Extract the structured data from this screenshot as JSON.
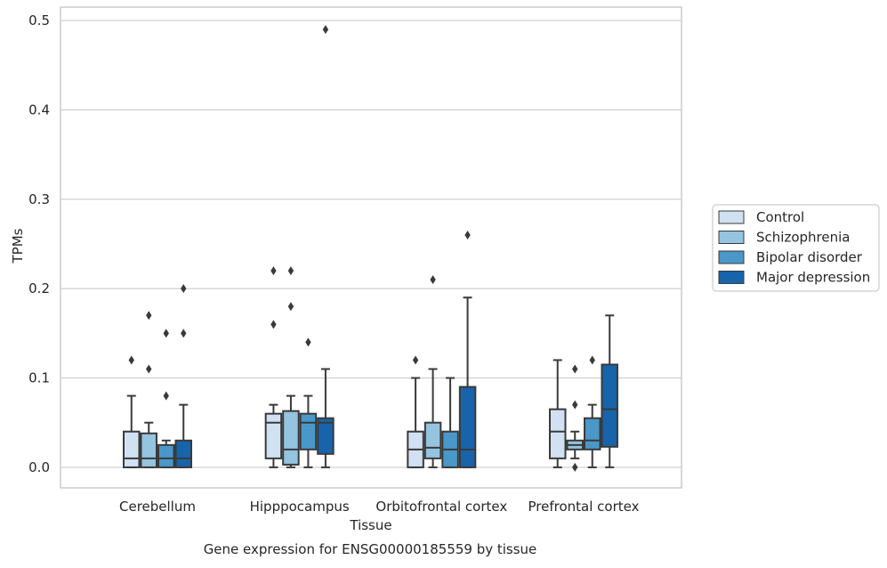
{
  "chart_data": {
    "type": "boxplot",
    "xlabel": "Tissue",
    "ylabel": "TPMs",
    "caption": "Gene expression for ENSG00000185559 by tissue",
    "ylim": [
      -0.023,
      0.515
    ],
    "yticks": [
      0.0,
      0.1,
      0.2,
      0.3,
      0.4,
      0.5
    ],
    "ytick_labels": [
      "0.0",
      "0.1",
      "0.2",
      "0.3",
      "0.4",
      "0.5"
    ],
    "grid": "horizontal",
    "legend_position": "right",
    "categories": [
      "Cerebellum",
      "Hipppocampus",
      "Orbitofrontal cortex",
      "Prefrontal cortex"
    ],
    "series": [
      {
        "name": "Control",
        "color": "#d0e1f2",
        "boxes": [
          {
            "whisker_low": 0.0,
            "q1": 0.0,
            "median": 0.01,
            "q3": 0.04,
            "whisker_high": 0.08,
            "outliers": [
              0.12
            ]
          },
          {
            "whisker_low": 0.0,
            "q1": 0.01,
            "median": 0.05,
            "q3": 0.06,
            "whisker_high": 0.07,
            "outliers": [
              0.16,
              0.22
            ]
          },
          {
            "whisker_low": 0.0,
            "q1": 0.0,
            "median": 0.02,
            "q3": 0.04,
            "whisker_high": 0.1,
            "outliers": [
              0.12
            ]
          },
          {
            "whisker_low": 0.0,
            "q1": 0.01,
            "median": 0.04,
            "q3": 0.065,
            "whisker_high": 0.12,
            "outliers": []
          }
        ]
      },
      {
        "name": "Schizophrenia",
        "color": "#94c4df",
        "boxes": [
          {
            "whisker_low": 0.0,
            "q1": 0.0,
            "median": 0.01,
            "q3": 0.038,
            "whisker_high": 0.05,
            "outliers": [
              0.11,
              0.17
            ]
          },
          {
            "whisker_low": 0.0,
            "q1": 0.003,
            "median": 0.02,
            "q3": 0.063,
            "whisker_high": 0.08,
            "outliers": [
              0.18,
              0.22
            ]
          },
          {
            "whisker_low": 0.0,
            "q1": 0.01,
            "median": 0.022,
            "q3": 0.05,
            "whisker_high": 0.11,
            "outliers": [
              0.21
            ]
          },
          {
            "whisker_low": 0.01,
            "q1": 0.02,
            "median": 0.025,
            "q3": 0.03,
            "whisker_high": 0.04,
            "outliers": [
              0.0,
              0.07,
              0.11
            ]
          }
        ]
      },
      {
        "name": "Bipolar disorder",
        "color": "#4a98c9",
        "boxes": [
          {
            "whisker_low": 0.0,
            "q1": 0.0,
            "median": 0.01,
            "q3": 0.025,
            "whisker_high": 0.03,
            "outliers": [
              0.08,
              0.15
            ]
          },
          {
            "whisker_low": 0.0,
            "q1": 0.02,
            "median": 0.05,
            "q3": 0.06,
            "whisker_high": 0.08,
            "outliers": [
              0.14
            ]
          },
          {
            "whisker_low": 0.0,
            "q1": 0.0,
            "median": 0.02,
            "q3": 0.04,
            "whisker_high": 0.1,
            "outliers": []
          },
          {
            "whisker_low": 0.0,
            "q1": 0.02,
            "median": 0.03,
            "q3": 0.055,
            "whisker_high": 0.07,
            "outliers": [
              0.12
            ]
          }
        ]
      },
      {
        "name": "Major depression",
        "color": "#1764ab",
        "boxes": [
          {
            "whisker_low": 0.0,
            "q1": 0.0,
            "median": 0.01,
            "q3": 0.03,
            "whisker_high": 0.07,
            "outliers": [
              0.15,
              0.2
            ]
          },
          {
            "whisker_low": 0.0,
            "q1": 0.015,
            "median": 0.05,
            "q3": 0.055,
            "whisker_high": 0.11,
            "outliers": [
              0.49
            ]
          },
          {
            "whisker_low": 0.0,
            "q1": 0.0,
            "median": 0.02,
            "q3": 0.09,
            "whisker_high": 0.19,
            "outliers": [
              0.26
            ]
          },
          {
            "whisker_low": 0.0,
            "q1": 0.023,
            "median": 0.065,
            "q3": 0.115,
            "whisker_high": 0.17,
            "outliers": []
          }
        ]
      }
    ]
  }
}
